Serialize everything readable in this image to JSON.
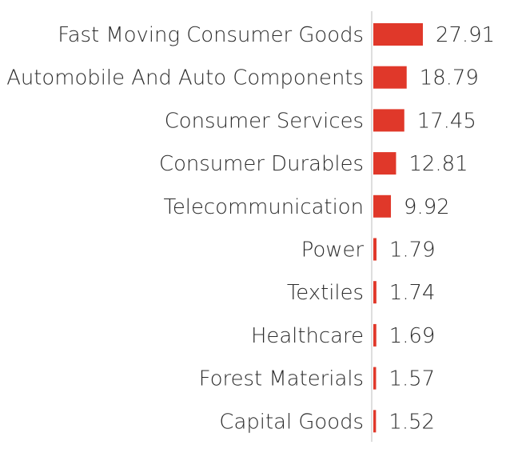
{
  "chart_data": {
    "type": "bar",
    "orientation": "horizontal",
    "title": "",
    "xlabel": "",
    "ylabel": "",
    "grid": false,
    "legend": "none",
    "bar_color": "#e0382a",
    "axis_color": "#c8c8c8",
    "xlim": [
      0,
      27.91
    ],
    "categories": [
      "Fast Moving Consumer Goods",
      "Automobile And Auto Components",
      "Consumer Services",
      "Consumer Durables",
      "Telecommunication",
      "Power",
      "Textiles",
      "Healthcare",
      "Forest Materials",
      "Capital Goods"
    ],
    "values": [
      27.91,
      18.79,
      17.45,
      12.81,
      9.92,
      1.79,
      1.74,
      1.69,
      1.57,
      1.52
    ],
    "value_labels": [
      "27.91",
      "18.79",
      "17.45",
      "12.81",
      "9.92",
      "1.79",
      "1.74",
      "1.69",
      "1.57",
      "1.52"
    ]
  }
}
